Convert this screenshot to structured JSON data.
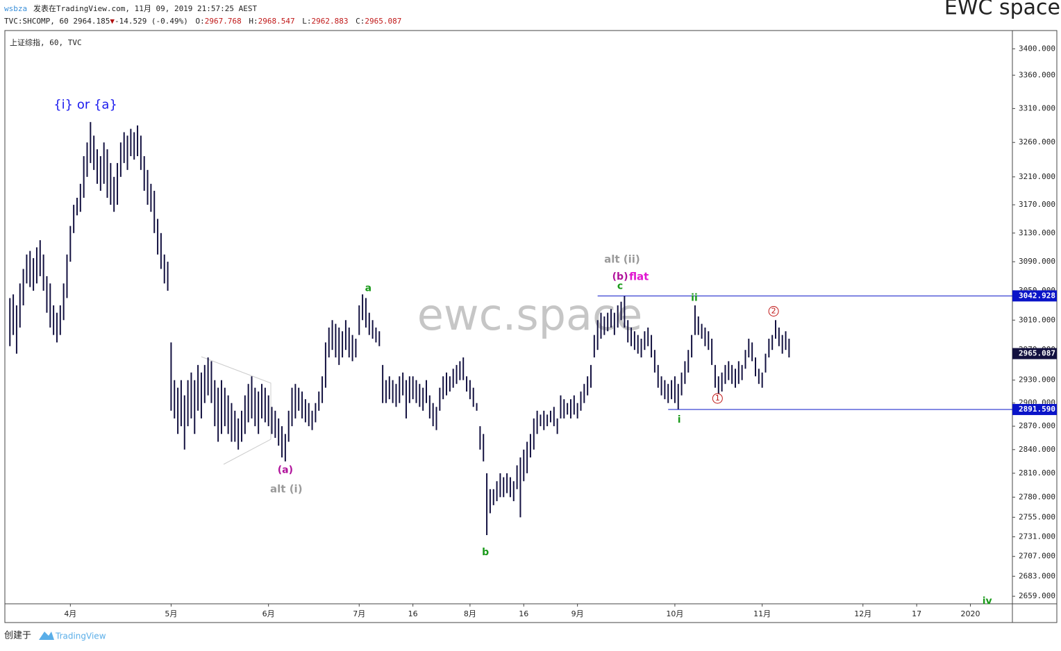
{
  "header": {
    "user": "wsbza",
    "published": "发表在TradingView.com, 11月 09, 2019 21:57:25 AEST",
    "symbol": "TVC:SHCOMP, 60 2964.185",
    "arrow": "▼",
    "change": "-14.529 (-0.49%)",
    "o_label": "O:",
    "o": "2967.768",
    "h_label": "H:",
    "h": "2968.547",
    "l_label": "L:",
    "l": "2962.883",
    "c_label": "C:",
    "c": "2965.087",
    "brand": "EWC space"
  },
  "footer": {
    "created": "创建于",
    "logo": "TradingView"
  },
  "chart_data": {
    "type": "ohlc",
    "title": "上证综指, 60, TVC",
    "watermark": "ewc.space",
    "color": "#131140",
    "log_scale": true,
    "ylim": [
      2650,
      3428
    ],
    "yticks": [
      {
        "value": 3400,
        "label": "3400.000"
      },
      {
        "value": 3360,
        "label": "3360.000"
      },
      {
        "value": 3310,
        "label": "3310.000"
      },
      {
        "value": 3260,
        "label": "3260.000"
      },
      {
        "value": 3210,
        "label": "3210.000"
      },
      {
        "value": 3170,
        "label": "3170.000"
      },
      {
        "value": 3130,
        "label": "3130.000"
      },
      {
        "value": 3090,
        "label": "3090.000"
      },
      {
        "value": 3050,
        "label": "3050.000"
      },
      {
        "value": 3010,
        "label": "3010.000"
      },
      {
        "value": 2970,
        "label": "2970.000"
      },
      {
        "value": 2930,
        "label": "2930.000"
      },
      {
        "value": 2900,
        "label": "2900.000"
      },
      {
        "value": 2870,
        "label": "2870.000"
      },
      {
        "value": 2840,
        "label": "2840.000"
      },
      {
        "value": 2810,
        "label": "2810.000"
      },
      {
        "value": 2780,
        "label": "2780.000"
      },
      {
        "value": 2755,
        "label": "2755.000"
      },
      {
        "value": 2731,
        "label": "2731.000"
      },
      {
        "value": 2707,
        "label": "2707.000"
      },
      {
        "value": 2683,
        "label": "2683.000"
      },
      {
        "value": 2659,
        "label": "2659.000"
      }
    ],
    "xlim": [
      -1.5,
      298.5
    ],
    "xticks": [
      {
        "value": 18,
        "label": "4月"
      },
      {
        "value": 48,
        "label": "5月"
      },
      {
        "value": 77,
        "label": "6月"
      },
      {
        "value": 104,
        "label": "7月"
      },
      {
        "value": 120,
        "label": "16"
      },
      {
        "value": 137,
        "label": "8月"
      },
      {
        "value": 153,
        "label": "16"
      },
      {
        "value": 169,
        "label": "9月"
      },
      {
        "value": 198,
        "label": "10月"
      },
      {
        "value": 224,
        "label": "11月"
      },
      {
        "value": 254,
        "label": "12月"
      },
      {
        "value": 270,
        "label": "17"
      },
      {
        "value": 286,
        "label": "2020"
      }
    ],
    "high": [
      3040,
      3045,
      3030,
      3060,
      3080,
      3100,
      3105,
      3095,
      3110,
      3120,
      3100,
      3070,
      3060,
      3030,
      3020,
      3030,
      3060,
      3100,
      3140,
      3170,
      3180,
      3200,
      3240,
      3260,
      3290,
      3270,
      3250,
      3240,
      3260,
      3250,
      3230,
      3210,
      3230,
      3260,
      3275,
      3270,
      3280,
      3275,
      3285,
      3270,
      3240,
      3220,
      3200,
      3190,
      3150,
      3130,
      3100,
      3090,
      2980,
      2930,
      2920,
      2930,
      2910,
      2930,
      2940,
      2930,
      2950,
      2940,
      2950,
      2960,
      2955,
      2930,
      2920,
      2930,
      2920,
      2910,
      2900,
      2890,
      2880,
      2890,
      2910,
      2925,
      2935,
      2920,
      2915,
      2925,
      2920,
      2910,
      2895,
      2890,
      2880,
      2870,
      2860,
      2890,
      2920,
      2925,
      2920,
      2915,
      2905,
      2900,
      2890,
      2900,
      2915,
      2935,
      2980,
      3000,
      3010,
      3005,
      3000,
      2995,
      3010,
      3000,
      2990,
      2985,
      3030,
      3045,
      3040,
      3020,
      3010,
      3000,
      2995,
      2950,
      2930,
      2935,
      2930,
      2925,
      2935,
      2940,
      2930,
      2935,
      2935,
      2930,
      2925,
      2920,
      2930,
      2910,
      2900,
      2895,
      2920,
      2935,
      2940,
      2935,
      2945,
      2950,
      2955,
      2960,
      2935,
      2930,
      2920,
      2900,
      2870,
      2860,
      2810,
      2790,
      2790,
      2800,
      2810,
      2805,
      2810,
      2805,
      2800,
      2820,
      2830,
      2840,
      2850,
      2860,
      2880,
      2890,
      2885,
      2890,
      2885,
      2890,
      2895,
      2880,
      2910,
      2905,
      2900,
      2905,
      2910,
      2900,
      2915,
      2925,
      2935,
      2950,
      2990,
      3010,
      3020,
      3015,
      3020,
      3025,
      3020,
      3030,
      3035,
      3043,
      3010,
      3000,
      2995,
      2990,
      2985,
      2995,
      3000,
      2990,
      2970,
      2950,
      2935,
      2930,
      2925,
      2930,
      2935,
      2925,
      2940,
      2955,
      2970,
      2990,
      3030,
      3015,
      3005,
      3000,
      2995,
      2985,
      2950,
      2935,
      2940,
      2950,
      2955,
      2950,
      2945,
      2955,
      2950,
      2970,
      2985,
      2980,
      2960,
      2945,
      2940,
      2965,
      2985,
      2990,
      3010,
      3000,
      2990,
      2995,
      2985
    ],
    "low": [
      2975,
      2990,
      2965,
      3000,
      3030,
      3060,
      3055,
      3050,
      3060,
      3070,
      3050,
      3020,
      3000,
      2990,
      2980,
      2990,
      3010,
      3040,
      3090,
      3130,
      3155,
      3160,
      3180,
      3210,
      3230,
      3220,
      3200,
      3190,
      3200,
      3180,
      3170,
      3160,
      3170,
      3210,
      3230,
      3220,
      3240,
      3235,
      3240,
      3220,
      3190,
      3170,
      3160,
      3130,
      3100,
      3080,
      3060,
      3050,
      2890,
      2880,
      2860,
      2870,
      2840,
      2870,
      2880,
      2860,
      2890,
      2880,
      2900,
      2910,
      2900,
      2870,
      2850,
      2860,
      2870,
      2860,
      2850,
      2850,
      2840,
      2850,
      2860,
      2875,
      2880,
      2870,
      2860,
      2880,
      2875,
      2870,
      2860,
      2855,
      2845,
      2830,
      2825,
      2850,
      2870,
      2880,
      2890,
      2880,
      2875,
      2870,
      2865,
      2875,
      2890,
      2900,
      2920,
      2960,
      2970,
      2960,
      2950,
      2960,
      2970,
      2960,
      2955,
      2960,
      2990,
      3010,
      3000,
      2990,
      2985,
      2980,
      2975,
      2900,
      2900,
      2905,
      2900,
      2895,
      2900,
      2910,
      2880,
      2900,
      2905,
      2900,
      2895,
      2890,
      2900,
      2880,
      2870,
      2865,
      2890,
      2905,
      2910,
      2915,
      2920,
      2925,
      2930,
      2930,
      2915,
      2905,
      2895,
      2890,
      2840,
      2825,
      2733,
      2760,
      2770,
      2775,
      2780,
      2780,
      2785,
      2780,
      2775,
      2790,
      2755,
      2800,
      2810,
      2830,
      2840,
      2860,
      2870,
      2865,
      2870,
      2875,
      2870,
      2860,
      2880,
      2880,
      2885,
      2880,
      2885,
      2880,
      2890,
      2900,
      2910,
      2920,
      2960,
      2970,
      2985,
      2990,
      2995,
      3000,
      2990,
      3000,
      3010,
      3000,
      2980,
      2975,
      2970,
      2965,
      2960,
      2970,
      2975,
      2960,
      2940,
      2920,
      2910,
      2905,
      2900,
      2905,
      2900,
      2892,
      2910,
      2925,
      2940,
      2960,
      2990,
      2990,
      2985,
      2975,
      2970,
      2950,
      2920,
      2912,
      2915,
      2925,
      2930,
      2925,
      2920,
      2925,
      2930,
      2945,
      2960,
      2955,
      2935,
      2925,
      2920,
      2940,
      2960,
      2970,
      2985,
      2975,
      2965,
      2970,
      2960
    ],
    "levels": [
      {
        "value": 3042.928,
        "label": "3042.928",
        "start": 175,
        "color": "#0a14c8"
      },
      {
        "value": 2891.59,
        "label": "2891.590",
        "start": 196,
        "color": "#0a14c8"
      }
    ],
    "last_price": {
      "value": 2965.087,
      "label": "2965.087",
      "color": "#131140"
    },
    "annotations": [
      {
        "text": "{i} or {a}",
        "x": 22.5,
        "y": 3315,
        "color": "#1a1aee",
        "size": 18
      },
      {
        "text": "a",
        "x": 106.7,
        "y": 3053,
        "color": "#1a9a1a",
        "size": 14
      },
      {
        "text": "b",
        "x": 141.6,
        "y": 2712,
        "color": "#1a9a1a",
        "size": 14
      },
      {
        "text": "(a)",
        "x": 82,
        "y": 2814,
        "color": "#b0129b",
        "size": 14
      },
      {
        "text": "alt (i)",
        "x": 82.3,
        "y": 2790,
        "color": "#9a9a9a",
        "size": 15
      },
      {
        "text": "alt (ii)",
        "x": 182.3,
        "y": 3093,
        "color": "#9a9a9a",
        "size": 15
      },
      {
        "text": "(b)",
        "x": 181.7,
        "y": 3069,
        "color": "#b0129b",
        "size": 14
      },
      {
        "text": "flat",
        "x": 187.3,
        "y": 3069,
        "color": "#e016d0",
        "size": 15
      },
      {
        "text": "c",
        "x": 181.7,
        "y": 3056,
        "color": "#1a9a1a",
        "size": 14
      },
      {
        "text": "ii",
        "x": 203.8,
        "y": 3040,
        "color": "#1a9a1a",
        "size": 14
      },
      {
        "text": "i",
        "x": 199.3,
        "y": 2878,
        "color": "#1a9a1a",
        "size": 14
      },
      {
        "text": "1",
        "x": 210.7,
        "y": 2906,
        "color": "#c01818",
        "size": 11,
        "circled": true
      },
      {
        "text": "2",
        "x": 227.4,
        "y": 3022,
        "color": "#c01818",
        "size": 11,
        "circled": true
      },
      {
        "text": "iv",
        "x": 291,
        "y": 2653,
        "color": "#1a9a1a",
        "size": 14
      }
    ]
  }
}
